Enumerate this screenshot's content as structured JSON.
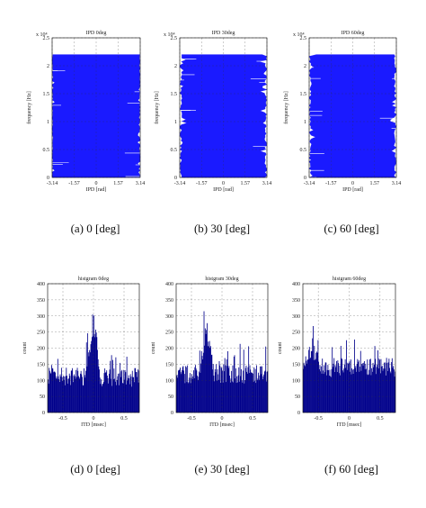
{
  "figure": {
    "captions": [
      "(a) 0 [deg]",
      "(b) 30 [deg]",
      "(c) 60 [deg]",
      "(d) 0 [deg]",
      "(e) 30 [deg]",
      "(f) 60 [deg]"
    ]
  },
  "chart_data": [
    {
      "type": "area",
      "title": "IPD 0deg",
      "xlabel": "IPD [rad]",
      "ylabel": "frequency [Hz]",
      "xlim": [
        -3.14,
        3.14
      ],
      "ylim": [
        0,
        2.5
      ],
      "y_multiplier_label": "x 10⁴",
      "xticks": [
        "-3.14",
        "-1.57",
        "0",
        "1.57",
        "3.14"
      ],
      "yticks": [
        "0",
        "0.5",
        "1",
        "1.5",
        "2",
        "2.5"
      ],
      "grid": true,
      "frequency_max": 2.2,
      "ipd_fill_range": [
        -3.14,
        3.14
      ],
      "color": "#1a1aff"
    },
    {
      "type": "area",
      "title": "IPD 30deg",
      "xlabel": "IPD [rad]",
      "ylabel": "frequency [Hz]",
      "xlim": [
        -3.14,
        3.14
      ],
      "ylim": [
        0,
        2.5
      ],
      "y_multiplier_label": "x 10⁴",
      "xticks": [
        "-3.14",
        "-1.57",
        "0",
        "1.57",
        "3.14"
      ],
      "yticks": [
        "0",
        "0.5",
        "1",
        "1.5",
        "2",
        "2.5"
      ],
      "grid": true,
      "frequency_max": 2.2,
      "ipd_fill_range": [
        -3.14,
        3.14
      ],
      "color": "#1a1aff"
    },
    {
      "type": "area",
      "title": "IPD 60deg",
      "xlabel": "IPD [rad]",
      "ylabel": "frequency [Hz]",
      "xlim": [
        -3.14,
        3.14
      ],
      "ylim": [
        0,
        2.5
      ],
      "y_multiplier_label": "x 10⁴",
      "xticks": [
        "-3.14",
        "-1.57",
        "0",
        "1.57",
        "3.14"
      ],
      "yticks": [
        "0",
        "0.5",
        "1",
        "1.5",
        "2",
        "2.5"
      ],
      "grid": true,
      "frequency_max": 2.2,
      "ipd_fill_range": [
        -3.14,
        3.14
      ],
      "color": "#1a1aff"
    },
    {
      "type": "bar",
      "title": "histgram 0deg",
      "xlabel": "ITD [msec]",
      "ylabel": "count",
      "xlim": [
        -0.75,
        0.75
      ],
      "ylim": [
        0,
        400
      ],
      "xticks": [
        "-0.5",
        "0",
        "0.5"
      ],
      "yticks": [
        "0",
        "50",
        "100",
        "150",
        "200",
        "250",
        "300",
        "350",
        "400"
      ],
      "grid": true,
      "baseline_count": 110,
      "peak_itd": 0.0,
      "peak_count": 320,
      "color": "#00008b"
    },
    {
      "type": "bar",
      "title": "histgram 30deg",
      "xlabel": "ITD [msec]",
      "ylabel": "count",
      "xlim": [
        -0.75,
        0.75
      ],
      "ylim": [
        0,
        400
      ],
      "xticks": [
        "-0.5",
        "0",
        "0.5"
      ],
      "yticks": [
        "0",
        "50",
        "100",
        "150",
        "200",
        "250",
        "300",
        "350",
        "400"
      ],
      "grid": true,
      "baseline_count": 120,
      "peak_itd": -0.25,
      "peak_count": 300,
      "color": "#00008b"
    },
    {
      "type": "bar",
      "title": "histgram 60deg",
      "xlabel": "ITD [msec]",
      "ylabel": "count",
      "xlim": [
        -0.75,
        0.75
      ],
      "ylim": [
        0,
        400
      ],
      "xticks": [
        "-0.5",
        "0",
        "0.5"
      ],
      "yticks": [
        "0",
        "50",
        "100",
        "150",
        "200",
        "250",
        "300",
        "350",
        "400"
      ],
      "grid": true,
      "baseline_count": 140,
      "peak_itd": -0.6,
      "peak_count": 220,
      "color": "#00008b"
    }
  ]
}
